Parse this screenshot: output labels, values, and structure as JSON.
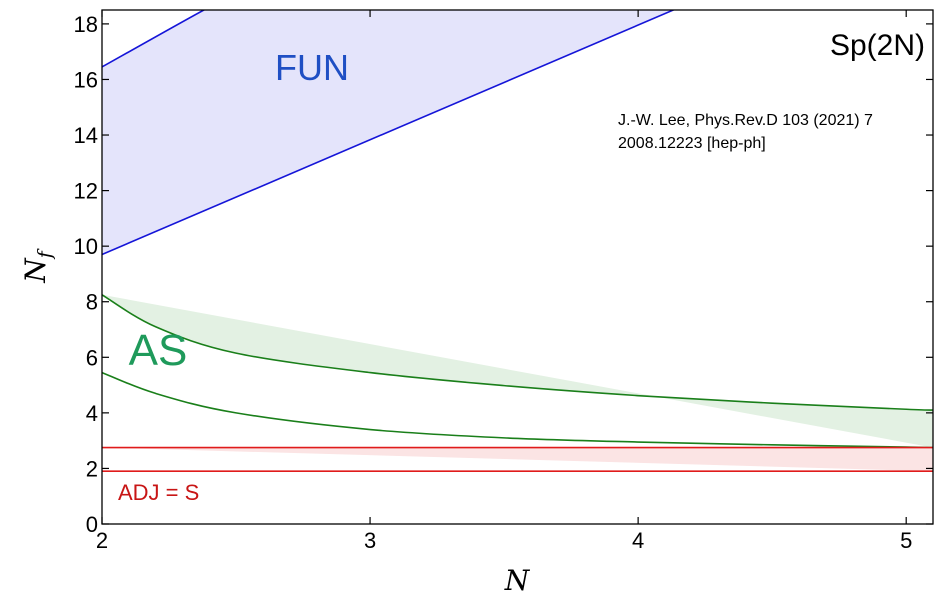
{
  "chart_data": {
    "type": "area",
    "title": "Sp(2N)",
    "xlabel": "N",
    "ylabel": "N",
    "ylabel_subscript": "f",
    "xlim": [
      2,
      5.1
    ],
    "ylim": [
      0,
      18.5
    ],
    "x_ticks": [
      2,
      3,
      4,
      5
    ],
    "y_ticks": [
      0,
      2,
      4,
      6,
      8,
      10,
      12,
      14,
      16,
      18
    ],
    "annotation_lines": [
      "J.-W. Lee, Phys.Rev.D 103 (2021) 7",
      "2008.12223 [hep-ph]"
    ],
    "series": [
      {
        "name": "FUN",
        "color": "#1f4fc4",
        "line_color": "#1515d8",
        "fill": "#e4e4fb",
        "lower": {
          "x": [
            2,
            5.1
          ],
          "y": [
            9.7,
            22.5
          ]
        },
        "upper": {
          "x": [
            2,
            2.38,
            2.6
          ],
          "y": [
            16.45,
            18.5,
            19.6
          ]
        }
      },
      {
        "name": "AS",
        "color": "#1f9a5b",
        "line_color": "#1a7f1a",
        "fill": "#e3f1e3",
        "lower": {
          "x": [
            2,
            2.2,
            2.5,
            3,
            3.5,
            4,
            4.5,
            5,
            5.1
          ],
          "y": [
            5.45,
            4.7,
            4.0,
            3.4,
            3.1,
            2.95,
            2.85,
            2.77,
            2.75
          ]
        },
        "upper": {
          "x": [
            2,
            2.2,
            2.5,
            3,
            3.5,
            4,
            4.5,
            5,
            5.1
          ],
          "y": [
            8.25,
            7.1,
            6.15,
            5.45,
            4.98,
            4.62,
            4.35,
            4.13,
            4.1
          ]
        }
      },
      {
        "name": "ADJ = S",
        "color": "#c81515",
        "line_color": "#e01b1b",
        "fill": "#fbe4e4",
        "lower": {
          "x": [
            2,
            5.1
          ],
          "y": [
            1.9,
            1.9
          ]
        },
        "upper": {
          "x": [
            2,
            5.1
          ],
          "y": [
            2.75,
            2.75
          ]
        }
      }
    ]
  }
}
